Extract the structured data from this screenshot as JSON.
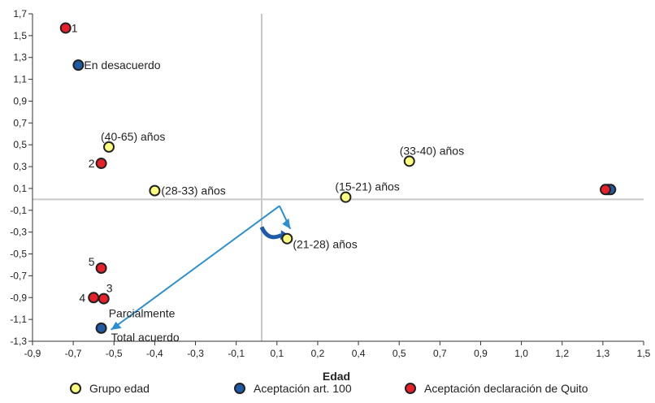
{
  "chart_data": {
    "type": "scatter",
    "xlabel": "Edad",
    "ylabel": "",
    "xlim": [
      -0.9,
      1.5
    ],
    "ylim": [
      -1.3,
      1.7
    ],
    "x_ticks": [
      "-0,9",
      "-0,7",
      "-0,5",
      "-0,4",
      "-0,3",
      "-0,1",
      "0,1",
      "0,2",
      "0,4",
      "0,5",
      "0,7",
      "0,9",
      "1,0",
      "1,2",
      "1,3",
      "1,5"
    ],
    "y_ticks": [
      "1,7",
      "1,5",
      "1,3",
      "1,1",
      "0,9",
      "0,7",
      "0,5",
      "0,3",
      "0,1",
      "-0,1",
      "-0,3",
      "-0,5",
      "-0,7",
      "-0,9",
      "-1,1",
      "-1,3"
    ],
    "series": [
      {
        "name": "Grupo edad",
        "color": "#ffff80",
        "points": [
          {
            "x": -0.6,
            "y": 0.48,
            "label": "(40-65) años"
          },
          {
            "x": -0.42,
            "y": 0.08,
            "label": "(28-33) años"
          },
          {
            "x": 0.33,
            "y": 0.02,
            "label": "(15-21) años"
          },
          {
            "x": 0.58,
            "y": 0.35,
            "label": "(33-40) años"
          },
          {
            "x": 0.1,
            "y": -0.36,
            "label": "(21-28) años"
          },
          {
            "x": 1.36,
            "y": 0.09,
            "label": ""
          }
        ]
      },
      {
        "name": "Aceptación art. 100",
        "color": "#1f5aa6",
        "points": [
          {
            "x": -0.72,
            "y": 1.23,
            "label": "En desacuerdo"
          },
          {
            "x": -0.63,
            "y": -1.18,
            "label": "Total acuerdo"
          },
          {
            "x": 1.37,
            "y": 0.09,
            "label": ""
          }
        ]
      },
      {
        "name": "Aceptación declaración de Quito",
        "color": "#e8202a",
        "points": [
          {
            "x": -0.77,
            "y": 1.57,
            "label": "1"
          },
          {
            "x": -0.63,
            "y": 0.33,
            "label": "2"
          },
          {
            "x": -0.62,
            "y": -0.91,
            "label": "3"
          },
          {
            "x": -0.66,
            "y": -0.9,
            "label": "4"
          },
          {
            "x": -0.63,
            "y": -0.63,
            "label": "5"
          },
          {
            "x": 1.35,
            "y": 0.09,
            "label": ""
          }
        ]
      }
    ],
    "annotations": [
      {
        "text": "Parcialmente",
        "x": -0.62,
        "y": -1.02
      }
    ],
    "legend_position": "bottom"
  }
}
